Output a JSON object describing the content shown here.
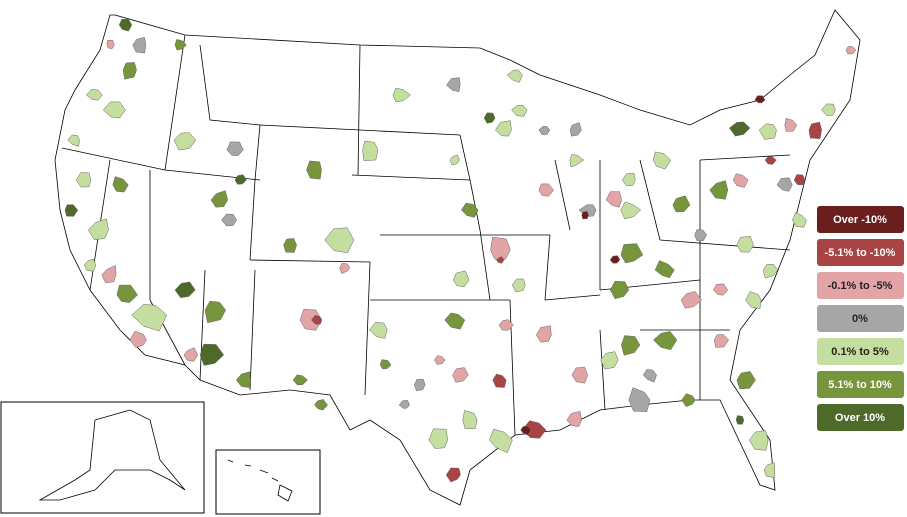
{
  "legend": [
    {
      "label": "Over -10%",
      "color": "#6b1e1e"
    },
    {
      "label": "-5.1% to -10%",
      "color": "#a94444"
    },
    {
      "label": "-0.1% to -5%",
      "color": "#e2a4a4"
    },
    {
      "label": "0%",
      "color": "#a6a6a6"
    },
    {
      "label": "0.1% to 5%",
      "color": "#c4dea0"
    },
    {
      "label": "5.1% to 10%",
      "color": "#76953d"
    },
    {
      "label": "Over 10%",
      "color": "#4e6a2a"
    }
  ]
}
